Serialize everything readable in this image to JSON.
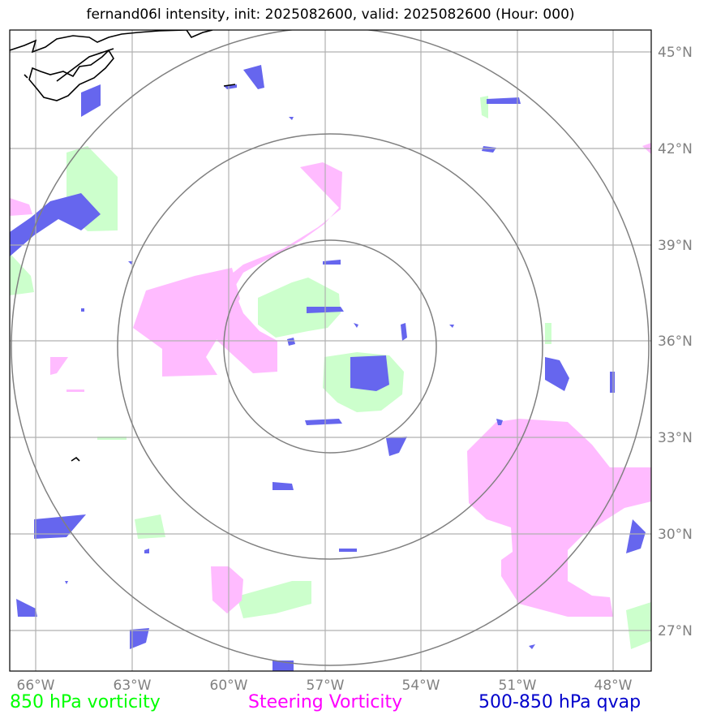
{
  "title": "fernand06l intensity, init: 2025082600, valid: 2025082600 (Hour: 000)",
  "legend": [
    {
      "label": "850 hPa vorticity",
      "color": "#00ff00"
    },
    {
      "label": "Steering Vorticity",
      "color": "#ff00ff"
    },
    {
      "label": "500-850 hPa qvap",
      "color": "#0000cc"
    }
  ],
  "chart_data": {
    "type": "map",
    "projection": "lat-lon",
    "xlim": [
      -67.2,
      -47.3
    ],
    "ylim": [
      25.8,
      45.7
    ],
    "x_ticks": [
      -66,
      -63,
      -60,
      -57,
      -54,
      -51,
      -48
    ],
    "x_tick_labels": [
      "66°W",
      "63°W",
      "60°W",
      "57°W",
      "54°W",
      "51°W",
      "48°W"
    ],
    "y_ticks": [
      27,
      30,
      33,
      36,
      39,
      42,
      45
    ],
    "y_tick_labels": [
      "27°N",
      "30°N",
      "33°N",
      "36°N",
      "39°N",
      "42°N",
      "45°N"
    ],
    "grid": true,
    "range_rings_center": {
      "lon": -57.0,
      "lat": 35.9
    },
    "range_rings_radius_deg": [
      3.3,
      6.6,
      9.9
    ],
    "layers": [
      {
        "name": "850 hPa vorticity",
        "color": "#ccffcc"
      },
      {
        "name": "Steering Vorticity",
        "color": "#ffbbff"
      },
      {
        "name": "500-850 hPa qvap",
        "color": "#6666ee"
      }
    ]
  }
}
